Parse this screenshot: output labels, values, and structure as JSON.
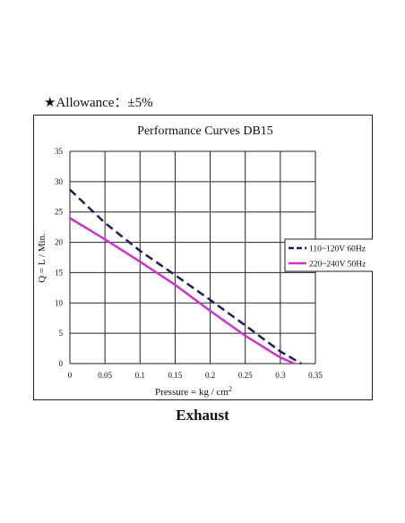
{
  "allowance": {
    "star": "★",
    "text": "Allowance：±5%"
  },
  "bottom_title": "Exhaust",
  "chart_data": {
    "type": "line",
    "title": "Performance  Curves  DB15",
    "xlabel": "Pressure = kg / cm",
    "xlabel_sup": "2",
    "ylabel": "Q = L / Min.",
    "xlim": [
      0,
      0.35
    ],
    "ylim": [
      0,
      35
    ],
    "x_ticks": [
      "0",
      "0.05",
      "0.1",
      "0.15",
      "0.2",
      "0.25",
      "0.3",
      "0.35"
    ],
    "y_ticks": [
      "0",
      "5",
      "10",
      "15",
      "20",
      "25",
      "30",
      "35"
    ],
    "grid": true,
    "legend_position": "right",
    "series": [
      {
        "name": "110~120V 60Hz",
        "color": "#1a1f5c",
        "dash": "dashed",
        "x": [
          0,
          0.05,
          0.1,
          0.15,
          0.2,
          0.25,
          0.3,
          0.33
        ],
        "y": [
          28.7,
          23.2,
          18.6,
          14.6,
          10.5,
          6.3,
          2.0,
          0
        ]
      },
      {
        "name": "220~240V 50Hz",
        "color": "#cc33cc",
        "dash": "solid",
        "x": [
          0,
          0.05,
          0.1,
          0.15,
          0.2,
          0.25,
          0.3,
          0.32
        ],
        "y": [
          24.0,
          20.5,
          16.8,
          13.0,
          8.7,
          4.6,
          1.0,
          0
        ]
      }
    ]
  }
}
